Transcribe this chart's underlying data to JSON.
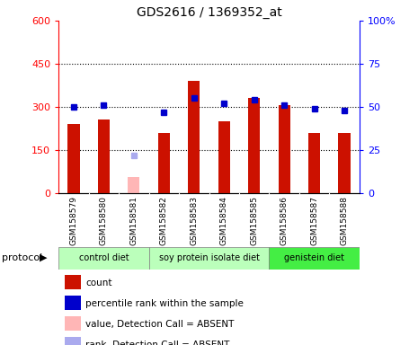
{
  "title": "GDS2616 / 1369352_at",
  "samples": [
    "GSM158579",
    "GSM158580",
    "GSM158581",
    "GSM158582",
    "GSM158583",
    "GSM158584",
    "GSM158585",
    "GSM158586",
    "GSM158587",
    "GSM158588"
  ],
  "counts": [
    240,
    255,
    null,
    210,
    390,
    250,
    330,
    305,
    210,
    210
  ],
  "counts_absent": [
    null,
    null,
    55,
    null,
    null,
    null,
    null,
    null,
    null,
    null
  ],
  "ranks": [
    50,
    51,
    null,
    47,
    55,
    52,
    54,
    51,
    49,
    48
  ],
  "ranks_absent": [
    null,
    null,
    22,
    null,
    null,
    null,
    null,
    null,
    null,
    null
  ],
  "ylim_left": [
    0,
    600
  ],
  "ylim_right": [
    0,
    100
  ],
  "yticks_left": [
    0,
    150,
    300,
    450,
    600
  ],
  "yticks_right": [
    0,
    25,
    50,
    75,
    100
  ],
  "bar_color": "#cc1100",
  "bar_absent_color": "#ffb6b6",
  "dot_color": "#0000cc",
  "dot_absent_color": "#aaaaee",
  "plot_bg_color": "#ffffff",
  "xtick_bg_color": "#d3d3d3",
  "group_defs": [
    {
      "start": 0,
      "end": 2,
      "label": "control diet",
      "color": "#bbffbb"
    },
    {
      "start": 3,
      "end": 6,
      "label": "soy protein isolate diet",
      "color": "#bbffbb"
    },
    {
      "start": 7,
      "end": 9,
      "label": "genistein diet",
      "color": "#44ee44"
    }
  ],
  "protocol_label": "protocol",
  "legend_items": [
    {
      "label": "count",
      "color": "#cc1100"
    },
    {
      "label": "percentile rank within the sample",
      "color": "#0000cc"
    },
    {
      "label": "value, Detection Call = ABSENT",
      "color": "#ffb6b6"
    },
    {
      "label": "rank, Detection Call = ABSENT",
      "color": "#aaaaee"
    }
  ]
}
